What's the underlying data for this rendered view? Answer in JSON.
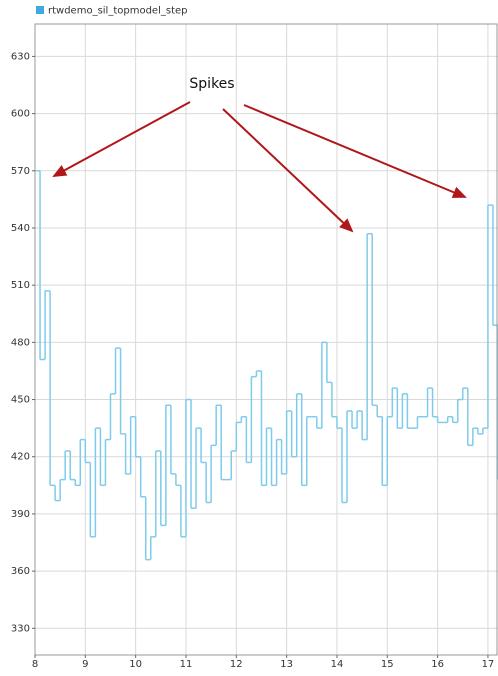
{
  "chart_data": {
    "type": "step",
    "annotation": "Spikes",
    "x": [
      8,
      8.1,
      8.2,
      8.3,
      8.4,
      8.5,
      8.6,
      8.7,
      8.8,
      8.9,
      9,
      9.1,
      9.2,
      9.3,
      9.4,
      9.5,
      9.6,
      9.7,
      9.8,
      9.9,
      10,
      10.1,
      10.2,
      10.3,
      10.4,
      10.5,
      10.6,
      10.7,
      10.8,
      10.9,
      11,
      11.1,
      11.2,
      11.3,
      11.4,
      11.5,
      11.6,
      11.7,
      11.8,
      11.9,
      12,
      12.1,
      12.2,
      12.3,
      12.4,
      12.5,
      12.6,
      12.7,
      12.8,
      12.9,
      13,
      13.1,
      13.2,
      13.3,
      13.4,
      13.5,
      13.6,
      13.7,
      13.8,
      13.9,
      14,
      14.1,
      14.2,
      14.3,
      14.4,
      14.5,
      14.6,
      14.7,
      14.8,
      14.9,
      15,
      15.1,
      15.2,
      15.3,
      15.4,
      15.5,
      15.6,
      15.7,
      15.8,
      15.9,
      16,
      16.1,
      16.2,
      16.3,
      16.4,
      16.5,
      16.6,
      16.7,
      16.8,
      16.9,
      17,
      17.1,
      17.2
    ],
    "series": [
      {
        "name": "rtwdemo_sil_topmodel_step",
        "color": "#7fcbeb",
        "legend_color": "#3fa9e0",
        "values": [
          570,
          471,
          507,
          405,
          397,
          408,
          423,
          408,
          405,
          429,
          417,
          378,
          435,
          405,
          429,
          453,
          477,
          432,
          411,
          441,
          420,
          399,
          366,
          378,
          423,
          384,
          447,
          411,
          405,
          378,
          450,
          393,
          435,
          417,
          396,
          426,
          447,
          408,
          408,
          423,
          438,
          441,
          417,
          462,
          465,
          405,
          435,
          405,
          429,
          411,
          444,
          420,
          453,
          405,
          441,
          441,
          435,
          480,
          459,
          441,
          435,
          396,
          444,
          435,
          444,
          429,
          537,
          447,
          441,
          405,
          441,
          456,
          435,
          453,
          435,
          435,
          441,
          441,
          456,
          441,
          438,
          438,
          441,
          438,
          450,
          456,
          426,
          435,
          432,
          435,
          552,
          489,
          408
        ]
      }
    ],
    "xlim": [
      8,
      17.2
    ],
    "ylim": [
      316,
      647
    ],
    "xticks": [
      8,
      9,
      10,
      11,
      12,
      13,
      14,
      15,
      16,
      17
    ],
    "yticks": [
      330,
      360,
      390,
      420,
      450,
      480,
      510,
      540,
      570,
      600,
      630
    ],
    "grid": true
  }
}
